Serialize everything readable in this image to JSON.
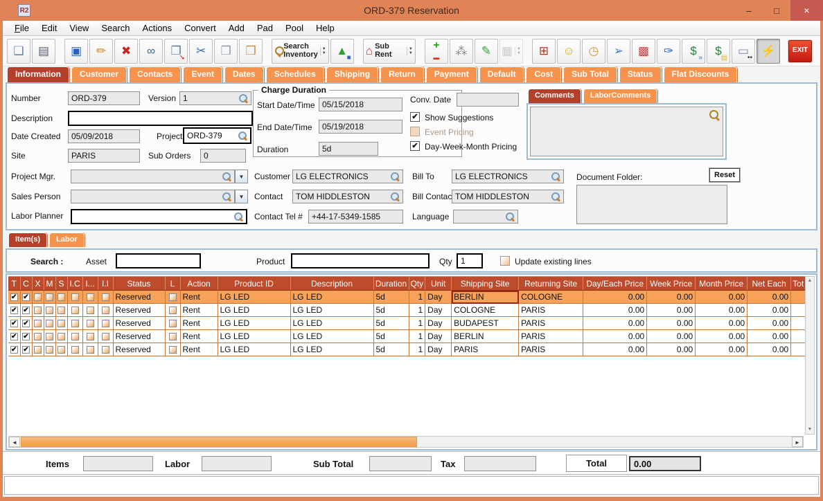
{
  "window": {
    "icon_text": "R2",
    "title": "ORD-379 Reservation",
    "controls": {
      "minimize": "–",
      "maximize": "□",
      "close": "×"
    }
  },
  "menu": {
    "items": [
      {
        "label": "File",
        "underline": 0
      },
      {
        "label": "Edit"
      },
      {
        "label": "View"
      },
      {
        "label": "Search"
      },
      {
        "label": "Actions"
      },
      {
        "label": "Convert"
      },
      {
        "label": "Add"
      },
      {
        "label": "Pad"
      },
      {
        "label": "Pool"
      },
      {
        "label": "Help"
      }
    ]
  },
  "toolbar": {
    "buttons": [
      {
        "name": "new-document-button",
        "glyph": "❏",
        "color": "#667a99"
      },
      {
        "name": "print-button",
        "glyph": "▤",
        "color": "#556070"
      },
      {
        "name": "save-button",
        "glyph": "▣",
        "color": "#2860c0",
        "gap_before": true
      },
      {
        "name": "edit-pencil-button",
        "glyph": "✏",
        "color": "#d08020"
      },
      {
        "name": "delete-button",
        "glyph": "✖",
        "color": "#cc2222"
      },
      {
        "name": "find-binoculars-button",
        "glyph": "∞",
        "color": "#446688"
      },
      {
        "name": "copy-move-button",
        "glyph": "❐",
        "color": "#5577aa",
        "glyph2": "➘",
        "color2": "#cc2211"
      },
      {
        "name": "cut-button",
        "glyph": "✂",
        "color": "#3a6ea8"
      },
      {
        "name": "copy-button",
        "glyph": "❐",
        "color": "#8899aa"
      },
      {
        "name": "paste-button",
        "glyph": "❒",
        "color": "#cc8844"
      },
      {
        "name": "search-inventory-button",
        "kind": "mag",
        "label": "Search\nInventory",
        "dropdown": true,
        "gap_before": true
      },
      {
        "name": "shapes-button",
        "glyph": "▲",
        "color": "#30a030",
        "glyph2": "■",
        "color2": "#3366cc"
      },
      {
        "name": "sub-rent-button",
        "glyph": "⌂",
        "color": "#cc3322",
        "label": "Sub Rent",
        "dropdown": true,
        "gap_before": true
      },
      {
        "name": "add-remove-button",
        "glyph": "+",
        "color": "#22aa22",
        "glyph2": "▬",
        "color2": "#dd3322",
        "stack": true,
        "gap_before": true
      },
      {
        "name": "group-question-button",
        "glyph": "⁂",
        "color": "#888888"
      },
      {
        "name": "notepad-edit-button",
        "glyph": "✎",
        "color": "#30a030"
      },
      {
        "name": "calendar-button",
        "glyph": "▦",
        "color": "#9a9a9a",
        "dropdown": true,
        "disabled": true
      },
      {
        "name": "org-chart-button",
        "glyph": "⊞",
        "color": "#bb3322",
        "gap_before": true
      },
      {
        "name": "smiley-button",
        "glyph": "☺",
        "color": "#dda800"
      },
      {
        "name": "folder-clock-button",
        "glyph": "◷",
        "color": "#cc9933"
      },
      {
        "name": "key-arrow-button",
        "glyph": "➢",
        "color": "#4477cc"
      },
      {
        "name": "rubik-cube-button",
        "glyph": "▩",
        "color": "#cc4444"
      },
      {
        "name": "notes-edit-button",
        "glyph": "✑",
        "color": "#3366bb"
      },
      {
        "name": "money-forward-button",
        "glyph": "$",
        "color": "#228833",
        "glyph2": "»",
        "color2": "#3366cc"
      },
      {
        "name": "money-notes-button",
        "glyph": "$",
        "color": "#228833",
        "glyph2": "▤",
        "color2": "#ddbb33"
      },
      {
        "name": "logistics-truck-button",
        "glyph": "▭",
        "color": "#7788aa",
        "glyph2": "••",
        "color2": "#223344"
      },
      {
        "name": "refresh-lightning-button",
        "glyph": "⚡",
        "color": "#dd9900",
        "pressed": true,
        "flex_before": true
      },
      {
        "name": "exit-button",
        "label": "EXIT",
        "kind": "exit"
      }
    ]
  },
  "main_tabs": {
    "items": [
      "Information",
      "Customer",
      "Contacts",
      "Event",
      "Dates",
      "Schedules",
      "Shipping",
      "Return",
      "Payment",
      "Default",
      "Cost",
      "Sub Total",
      "Status",
      "Flat Discounts"
    ],
    "selected": "Information"
  },
  "form": {
    "number": {
      "label": "Number",
      "value": "ORD-379"
    },
    "version": {
      "label": "Version",
      "value": "1"
    },
    "description": {
      "label": "Description",
      "value": ""
    },
    "date_created": {
      "label": "Date Created",
      "value": "05/09/2018"
    },
    "project": {
      "label": "Project",
      "value": "ORD-379"
    },
    "site": {
      "label": "Site",
      "value": "PARIS"
    },
    "sub_orders": {
      "label": "Sub Orders",
      "value": "0"
    },
    "project_mgr": {
      "label": "Project Mgr.",
      "value": ""
    },
    "sales_person": {
      "label": "Sales Person",
      "value": ""
    },
    "labor_planner": {
      "label": "Labor Planner",
      "value": ""
    },
    "charge_duration": {
      "title": "Charge Duration",
      "start": {
        "label": "Start Date/Time",
        "value": "05/15/2018"
      },
      "end": {
        "label": "End Date/Time",
        "value": "05/19/2018"
      },
      "duration": {
        "label": "Duration",
        "value": "5d"
      }
    },
    "conv_date": {
      "label": "Conv. Date",
      "value": ""
    },
    "show_suggestions": {
      "label": "Show Suggestions",
      "checked": true
    },
    "event_pricing": {
      "label": "Event Pricing",
      "checked": false
    },
    "day_week_month": {
      "label": "Day-Week-Month Pricing",
      "checked": true
    },
    "customer": {
      "label": "Customer",
      "value": "LG ELECTRONICS"
    },
    "contact": {
      "label": "Contact",
      "value": "TOM HIDDLESTON"
    },
    "contact_tel": {
      "label": "Contact Tel #",
      "value": "+44-17-5349-1585"
    },
    "bill_to": {
      "label": "Bill To",
      "value": "LG ELECTRONICS"
    },
    "bill_contact": {
      "label": "Bill Contact",
      "value": "TOM HIDDLESTON"
    },
    "language": {
      "label": "Language",
      "value": ""
    },
    "comments_tabs": {
      "items": [
        "Comments",
        "LaborComments"
      ],
      "selected": "Comments"
    },
    "comments_value": "",
    "document_folder": {
      "label": "Document Folder:",
      "reset_label": "Reset",
      "value": ""
    }
  },
  "items_section": {
    "tabs": {
      "items": [
        "Item(s)",
        "Labor"
      ],
      "selected": "Item(s)"
    },
    "search": {
      "label": "Search :",
      "asset_label": "Asset",
      "asset_value": "",
      "product_label": "Product",
      "product_value": "",
      "qty_label": "Qty",
      "qty_value": "1",
      "update_label": "Update existing lines",
      "update_checked": false
    }
  },
  "table": {
    "columns": [
      {
        "label": "T",
        "key": "t",
        "type": "cb"
      },
      {
        "label": "C",
        "key": "c",
        "type": "cb"
      },
      {
        "label": "X",
        "key": "x",
        "type": "cb"
      },
      {
        "label": "M",
        "key": "m",
        "type": "cb"
      },
      {
        "label": "S",
        "key": "s",
        "type": "cb"
      },
      {
        "label": "I.C",
        "key": "ic",
        "type": "cb"
      },
      {
        "label": "I...",
        "key": "idots",
        "type": "cb"
      },
      {
        "label": "I.I",
        "key": "ii",
        "type": "cb"
      },
      {
        "label": "Status",
        "key": "status",
        "type": "text"
      },
      {
        "label": "L",
        "key": "l",
        "type": "cb"
      },
      {
        "label": "Action",
        "key": "action",
        "type": "text"
      },
      {
        "label": "Product ID",
        "key": "product_id",
        "type": "text"
      },
      {
        "label": "Description",
        "key": "description",
        "type": "text"
      },
      {
        "label": "Duration",
        "key": "duration",
        "type": "text"
      },
      {
        "label": "Qty",
        "key": "qty",
        "type": "num"
      },
      {
        "label": "Unit",
        "key": "unit",
        "type": "text"
      },
      {
        "label": "Shipping Site",
        "key": "shipping_site",
        "type": "text"
      },
      {
        "label": "Returning Site",
        "key": "returning_site",
        "type": "text"
      },
      {
        "label": "Day/Each Price",
        "key": "day_each_price",
        "type": "num"
      },
      {
        "label": "Week Price",
        "key": "week_price",
        "type": "num"
      },
      {
        "label": "Month Price",
        "key": "month_price",
        "type": "num"
      },
      {
        "label": "Net Each",
        "key": "net_each",
        "type": "num"
      },
      {
        "label": "Tot",
        "key": "tot",
        "type": "text"
      }
    ],
    "selected_cell": {
      "row": 0,
      "column": "shipping_site"
    },
    "rows": [
      {
        "selected": true,
        "checks": {
          "t": true,
          "c": true,
          "x": false,
          "m": false,
          "s": false,
          "ic": false,
          "idots": false,
          "ii": false,
          "l": false
        },
        "cells": {
          "status": "Reserved",
          "action": "Rent",
          "product_id": "LG LED",
          "description": "LG LED",
          "duration": "5d",
          "qty": "1",
          "unit": "Day",
          "shipping_site": "BERLIN",
          "returning_site": "COLOGNE",
          "day_each_price": "0.00",
          "week_price": "0.00",
          "month_price": "0.00",
          "net_each": "0.00",
          "tot": ""
        }
      },
      {
        "selected": false,
        "checks": {
          "t": true,
          "c": true,
          "x": false,
          "m": false,
          "s": false,
          "ic": false,
          "idots": false,
          "ii": false,
          "l": false
        },
        "cells": {
          "status": "Reserved",
          "action": "Rent",
          "product_id": "LG LED",
          "description": "LG LED",
          "duration": "5d",
          "qty": "1",
          "unit": "Day",
          "shipping_site": "COLOGNE",
          "returning_site": "PARIS",
          "day_each_price": "0.00",
          "week_price": "0.00",
          "month_price": "0.00",
          "net_each": "0.00",
          "tot": ""
        }
      },
      {
        "selected": false,
        "checks": {
          "t": true,
          "c": true,
          "x": false,
          "m": false,
          "s": false,
          "ic": false,
          "idots": false,
          "ii": false,
          "l": false
        },
        "cells": {
          "status": "Reserved",
          "action": "Rent",
          "product_id": "LG LED",
          "description": "LG LED",
          "duration": "5d",
          "qty": "1",
          "unit": "Day",
          "shipping_site": "BUDAPEST",
          "returning_site": "PARIS",
          "day_each_price": "0.00",
          "week_price": "0.00",
          "month_price": "0.00",
          "net_each": "0.00",
          "tot": ""
        }
      },
      {
        "selected": false,
        "checks": {
          "t": true,
          "c": true,
          "x": false,
          "m": false,
          "s": false,
          "ic": false,
          "idots": false,
          "ii": false,
          "l": false
        },
        "cells": {
          "status": "Reserved",
          "action": "Rent",
          "product_id": "LG LED",
          "description": "LG LED",
          "duration": "5d",
          "qty": "1",
          "unit": "Day",
          "shipping_site": "BERLIN",
          "returning_site": "PARIS",
          "day_each_price": "0.00",
          "week_price": "0.00",
          "month_price": "0.00",
          "net_each": "0.00",
          "tot": ""
        }
      },
      {
        "selected": false,
        "checks": {
          "t": true,
          "c": true,
          "x": false,
          "m": false,
          "s": false,
          "ic": false,
          "idots": false,
          "ii": false,
          "l": false
        },
        "cells": {
          "status": "Reserved",
          "action": "Rent",
          "product_id": "LG LED",
          "description": "LG LED",
          "duration": "5d",
          "qty": "1",
          "unit": "Day",
          "shipping_site": "PARIS",
          "returning_site": "PARIS",
          "day_each_price": "0.00",
          "week_price": "0.00",
          "month_price": "0.00",
          "net_each": "0.00",
          "tot": ""
        }
      }
    ]
  },
  "summary": {
    "items_label": "Items",
    "items_value": "",
    "labor_label": "Labor",
    "labor_value": "",
    "sub_total_label": "Sub Total",
    "sub_total_value": "",
    "tax_label": "Tax",
    "tax_value": "",
    "total_label": "Total",
    "total_value": "0.00"
  },
  "icons": {
    "check": "✔",
    "dropdown": "▼",
    "dropdown_small": "▼",
    "left_arrow": "◄",
    "right_arrow": "►",
    "up_arrow": "▲",
    "down_arrow": "▼"
  },
  "colors": {
    "titlebar": "#E08357",
    "tab": "#F6934C",
    "tab_selected": "#B2402A",
    "table_header": "#BE4C2C",
    "row_selected": "#F8A159",
    "scroll_thumb": "#F5AE6B",
    "exit_button": "#D62A1A"
  }
}
